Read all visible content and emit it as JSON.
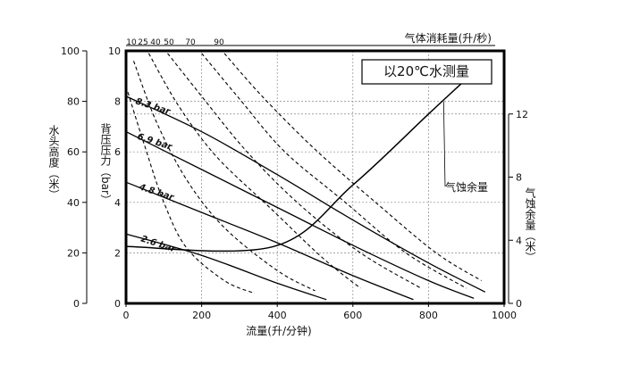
{
  "chart_data": {
    "type": "line",
    "xlabel": "流量(升/分钟)",
    "x_range": [
      0,
      1000
    ],
    "x_ticks": [
      "0",
      "200",
      "400",
      "600",
      "800",
      "1000"
    ],
    "ylabel_pressure": "背压压力（bar）",
    "y_range": [
      0,
      10
    ],
    "y_ticks": [
      "0",
      "2",
      "4",
      "6",
      "8",
      "10"
    ],
    "ylabel_head": "水头高度（米）",
    "head_ticks": [
      "0",
      "20",
      "40",
      "60",
      "80",
      "100"
    ],
    "ylabel_npsh": "气蚀余量（米）",
    "npsh_ticks": [
      "0",
      "4",
      "8",
      "12"
    ],
    "top_label": "气体消耗量(升/秒)",
    "air_ticks": [
      "10",
      "25",
      "40",
      "50",
      "70",
      "90"
    ],
    "note": "以20℃水测量",
    "npsh_curve_label": "气蚀余量",
    "grid": true,
    "series": [
      {
        "name": "8.3 bar",
        "x": [
          0,
          200,
          400,
          600,
          800,
          950
        ],
        "y": [
          8.2,
          6.8,
          5.1,
          3.3,
          1.6,
          0.45
        ]
      },
      {
        "name": "6.9 bar",
        "x": [
          0,
          200,
          400,
          600,
          800,
          920
        ],
        "y": [
          6.8,
          5.3,
          3.8,
          2.3,
          0.9,
          0.2
        ]
      },
      {
        "name": "4.8 bar",
        "x": [
          0,
          200,
          400,
          600,
          760
        ],
        "y": [
          4.8,
          3.6,
          2.4,
          1.1,
          0.15
        ]
      },
      {
        "name": "2.6 bar",
        "x": [
          0,
          200,
          400,
          530
        ],
        "y": [
          2.75,
          1.9,
          0.8,
          0.15
        ]
      }
    ],
    "air_consumption_curves": [
      {
        "x": [
          0,
          50,
          100,
          160,
          260,
          340
        ],
        "y": [
          8.6,
          6.2,
          4.0,
          2.2,
          0.9,
          0.4
        ]
      },
      {
        "x": [
          20,
          80,
          160,
          260,
          400,
          500
        ],
        "y": [
          9.6,
          7.2,
          4.9,
          3.0,
          1.3,
          0.5
        ]
      },
      {
        "x": [
          60,
          140,
          240,
          380,
          520,
          620
        ],
        "y": [
          9.9,
          7.8,
          5.8,
          3.8,
          1.8,
          0.6
        ]
      },
      {
        "x": [
          110,
          200,
          320,
          460,
          620,
          780
        ],
        "y": [
          9.9,
          8.2,
          6.0,
          3.9,
          2.0,
          0.6
        ]
      },
      {
        "x": [
          200,
          300,
          420,
          580,
          740,
          900
        ],
        "y": [
          9.9,
          8.1,
          6.0,
          4.0,
          2.0,
          0.6
        ]
      },
      {
        "x": [
          260,
          360,
          500,
          660,
          820,
          940
        ],
        "y": [
          9.9,
          8.2,
          6.1,
          4.0,
          2.0,
          0.9
        ]
      }
    ],
    "npsh_curve": {
      "x": [
        0,
        390,
        600,
        800,
        890
      ],
      "y_m": [
        3.6,
        3.6,
        7.5,
        12.0,
        14.0
      ]
    }
  }
}
